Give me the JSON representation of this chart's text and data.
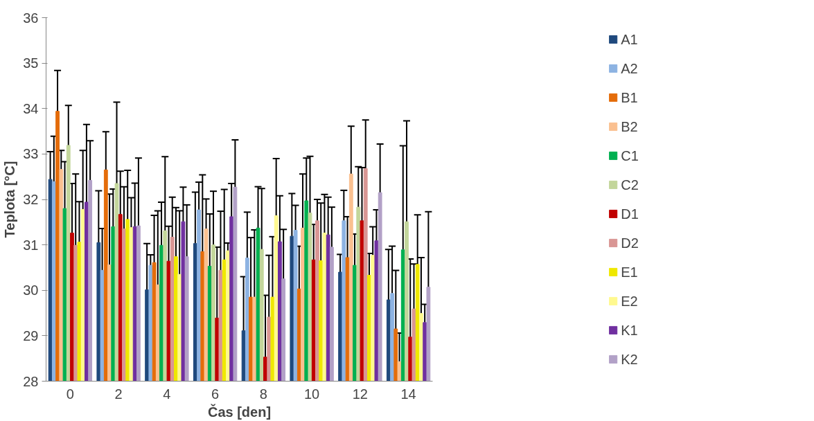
{
  "chart_data": {
    "type": "bar",
    "xlabel": "Čas [den]",
    "ylabel": "Teplota [°C]",
    "categories": [
      "0",
      "2",
      "4",
      "6",
      "8",
      "10",
      "12",
      "14"
    ],
    "ylim": [
      28,
      36
    ],
    "yticks": [
      28,
      29,
      30,
      31,
      32,
      33,
      34,
      35,
      36
    ],
    "grid": false,
    "legend": "right",
    "series": [
      {
        "name": "A1",
        "color": "#1f497d",
        "values": [
          32.44,
          31.05,
          30.01,
          31.03,
          29.11,
          31.19,
          30.4,
          29.79
        ],
        "errors": [
          [
            32.44,
            33.05
          ],
          [
            31.05,
            32.19
          ],
          [
            30.01,
            31.03
          ],
          [
            31.03,
            32.16
          ],
          [
            29.11,
            30.3
          ],
          [
            31.19,
            32.13
          ],
          [
            30.4,
            30.79
          ],
          [
            29.79,
            30.9
          ]
        ]
      },
      {
        "name": "A2",
        "color": "#8db3e2",
        "values": [
          32.39,
          30.44,
          30.55,
          31.77,
          30.71,
          31.32,
          31.53,
          29.93
        ],
        "errors": [
          [
            32.39,
            33.39
          ],
          [
            30.44,
            31.36
          ],
          [
            30.55,
            30.78
          ],
          [
            31.77,
            32.38
          ],
          [
            30.71,
            31.72
          ],
          [
            31.32,
            31.87
          ],
          [
            31.53,
            32.2
          ],
          [
            29.93,
            30.97
          ]
        ]
      },
      {
        "name": "B1",
        "color": "#e46c0a",
        "values": [
          33.94,
          32.65,
          30.61,
          30.85,
          29.85,
          30.03,
          30.72,
          29.15
        ],
        "errors": [
          [
            33.94,
            34.84
          ],
          [
            32.65,
            33.49
          ],
          [
            30.61,
            31.65
          ],
          [
            30.85,
            32.54
          ],
          [
            29.85,
            31.16
          ],
          [
            30.03,
            30.97
          ],
          [
            30.72,
            31.62
          ],
          [
            29.15,
            30.44
          ]
        ]
      },
      {
        "name": "B2",
        "color": "#fac090",
        "values": [
          32.66,
          30.56,
          30.12,
          31.35,
          29.85,
          31.37,
          32.56,
          28.43
        ],
        "errors": [
          [
            32.66,
            33.08
          ],
          [
            30.56,
            32.12
          ],
          [
            30.12,
            31.75
          ],
          [
            31.35,
            32.01
          ],
          [
            29.85,
            31.33
          ],
          [
            31.37,
            32.56
          ],
          [
            32.56,
            33.61
          ],
          [
            28.43,
            29.06
          ]
        ]
      },
      {
        "name": "C1",
        "color": "#00b050",
        "values": [
          31.8,
          31.4,
          30.99,
          30.53,
          31.37,
          31.97,
          30.55,
          30.89
        ],
        "errors": [
          [
            31.8,
            32.83
          ],
          [
            31.4,
            32.23
          ],
          [
            30.99,
            31.94
          ],
          [
            30.53,
            31.68
          ],
          [
            31.37,
            32.28
          ],
          [
            31.97,
            32.91
          ],
          [
            30.55,
            31.24
          ],
          [
            30.89,
            33.18
          ]
        ]
      },
      {
        "name": "C2",
        "color": "#c3d69b",
        "values": [
          33.19,
          32.35,
          31.31,
          31.0,
          30.9,
          31.7,
          31.83,
          31.51
        ],
        "errors": [
          [
            33.19,
            34.07
          ],
          [
            32.35,
            34.14
          ],
          [
            31.31,
            32.94
          ],
          [
            31.0,
            32.18
          ],
          [
            30.9,
            32.24
          ],
          [
            31.7,
            32.95
          ],
          [
            31.83,
            32.72
          ],
          [
            31.51,
            33.73
          ]
        ]
      },
      {
        "name": "D1",
        "color": "#c00000",
        "values": [
          31.26,
          31.67,
          30.64,
          29.39,
          28.53,
          30.67,
          31.53,
          28.97
        ],
        "errors": [
          [
            31.26,
            32.35
          ],
          [
            31.67,
            32.62
          ],
          [
            30.64,
            31.41
          ],
          [
            29.39,
            30.95
          ],
          [
            28.53,
            29.89
          ],
          [
            30.67,
            31.45
          ],
          [
            31.53,
            32.7
          ],
          [
            28.97,
            30.69
          ]
        ]
      },
      {
        "name": "D2",
        "color": "#d99694",
        "values": [
          30.99,
          31.35,
          31.17,
          30.44,
          29.41,
          31.53,
          32.68,
          29.59
        ],
        "errors": [
          [
            30.99,
            32.56
          ],
          [
            31.35,
            32.28
          ],
          [
            31.17,
            32.05
          ],
          [
            30.44,
            31.74
          ],
          [
            29.41,
            30.77
          ],
          [
            31.53,
            32.0
          ],
          [
            32.68,
            33.75
          ],
          [
            29.59,
            30.58
          ]
        ]
      },
      {
        "name": "E1",
        "color": "#efe800",
        "values": [
          31.06,
          31.56,
          30.74,
          30.67,
          29.85,
          30.65,
          30.33,
          30.57
        ],
        "errors": [
          [
            31.06,
            31.95
          ],
          [
            31.56,
            32.64
          ],
          [
            30.74,
            31.82
          ],
          [
            30.67,
            32.22
          ],
          [
            29.85,
            31.18
          ],
          [
            30.65,
            31.92
          ],
          [
            30.33,
            30.81
          ],
          [
            30.57,
            31.66
          ]
        ]
      },
      {
        "name": "E2",
        "color": "#fff98f",
        "values": [
          31.78,
          31.38,
          30.35,
          30.87,
          31.64,
          31.26,
          30.77,
          29.49
        ],
        "errors": [
          [
            31.78,
            33.08
          ],
          [
            31.38,
            32.04
          ],
          [
            30.35,
            31.75
          ],
          [
            30.87,
            31.04
          ],
          [
            31.64,
            32.9
          ],
          [
            31.26,
            32.11
          ],
          [
            30.77,
            31.4
          ],
          [
            29.49,
            30.72
          ]
        ]
      },
      {
        "name": "K1",
        "color": "#7030a0",
        "values": [
          31.94,
          31.4,
          31.51,
          31.62,
          31.07,
          31.22,
          31.09,
          29.29
        ],
        "errors": [
          [
            31.94,
            33.65
          ],
          [
            31.4,
            32.36
          ],
          [
            31.51,
            32.27
          ],
          [
            31.62,
            32.35
          ],
          [
            31.07,
            32.08
          ],
          [
            31.22,
            32.05
          ],
          [
            31.09,
            31.77
          ],
          [
            29.29,
            29.69
          ]
        ]
      },
      {
        "name": "K2",
        "color": "#b2a1c7",
        "values": [
          32.42,
          31.42,
          30.74,
          32.27,
          30.25,
          30.95,
          32.15,
          30.07
        ],
        "errors": [
          [
            32.42,
            33.29
          ],
          [
            31.42,
            32.91
          ],
          [
            30.74,
            31.88
          ],
          [
            32.27,
            33.31
          ],
          [
            30.25,
            31.34
          ],
          [
            30.95,
            31.83
          ],
          [
            32.15,
            33.22
          ],
          [
            30.07,
            31.73
          ]
        ]
      }
    ]
  }
}
